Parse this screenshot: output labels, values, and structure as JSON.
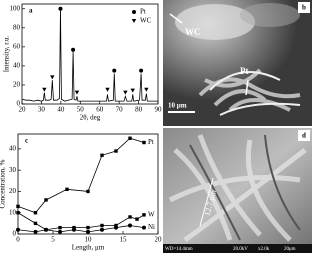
{
  "chart_data": [
    {
      "type": "line",
      "panel_label": "a",
      "x_label": "2θ, deg",
      "y_label": "Intensity, r.u.",
      "xlim": [
        20,
        90
      ],
      "xticks": [
        20,
        30,
        40,
        50,
        60,
        70,
        80,
        90
      ],
      "ylim": [
        0,
        105
      ],
      "yticks": [
        0,
        20,
        40,
        60,
        80,
        100
      ],
      "legend": "upper right",
      "series": [
        {
          "color": "#000000",
          "show_line": true,
          "marker": null,
          "x": [
            20,
            22,
            24,
            26,
            28,
            30,
            31,
            31.5,
            32,
            34,
            35,
            35.6,
            36.2,
            38,
            39.3,
            39.8,
            40.3,
            42,
            45.8,
            46.3,
            46.8,
            47.8,
            48.3,
            48.8,
            52,
            56,
            60,
            63.5,
            64,
            64.5,
            67,
            67.5,
            68,
            72.5,
            73.2,
            74,
            76.5,
            77,
            77.5,
            80.5,
            81.3,
            81.8,
            83.5,
            84,
            84.5,
            88,
            90
          ],
          "values": [
            5,
            4,
            4,
            3,
            4,
            3,
            4,
            12,
            4,
            4,
            5,
            25,
            4,
            4,
            6,
            100,
            5,
            3,
            5,
            55,
            5,
            4,
            8,
            3,
            3,
            3,
            3,
            3,
            10,
            3,
            4,
            32,
            3,
            3,
            8,
            3,
            3,
            10,
            3,
            4,
            32,
            4,
            4,
            11,
            3,
            3,
            3
          ]
        },
        {
          "name": "Pt",
          "color": "#000000",
          "show_line": false,
          "marker": "circle",
          "x": [
            39.8,
            46.3,
            67.5,
            81.3
          ],
          "values": [
            100,
            57,
            35,
            35
          ]
        },
        {
          "name": "WC",
          "color": "#000000",
          "show_line": false,
          "marker": "triangle-down",
          "x": [
            31.5,
            35.6,
            48.3,
            64,
            73.2,
            77,
            84
          ],
          "values": [
            15,
            28,
            12,
            15,
            12,
            14,
            15
          ]
        }
      ]
    },
    {
      "type": "line",
      "panel_label": "c",
      "x_label": "Length, μm",
      "y_label": "Concentration, %",
      "xlim": [
        0,
        20
      ],
      "xticks": [
        0,
        5,
        10,
        15,
        20
      ],
      "ylim": [
        0,
        47
      ],
      "yticks": [
        0,
        10,
        20,
        30,
        40
      ],
      "legend": "line end",
      "series": [
        {
          "name": "Pt",
          "color": "#000000",
          "show_line": true,
          "marker": "square",
          "x": [
            0,
            2.5,
            4,
            7,
            10,
            12,
            14,
            16,
            18
          ],
          "values": [
            13,
            10,
            16,
            21,
            20,
            37,
            39,
            45,
            43
          ]
        },
        {
          "name": "W",
          "color": "#000000",
          "show_line": true,
          "marker": "square",
          "x": [
            0,
            2.5,
            4,
            6,
            8,
            10,
            12,
            14,
            16,
            17,
            18
          ],
          "values": [
            10,
            5,
            2,
            3,
            3,
            3,
            4,
            4,
            8,
            7,
            9
          ]
        },
        {
          "name": "Ni",
          "color": "#000000",
          "show_line": true,
          "marker": "circle",
          "x": [
            0,
            2.5,
            4,
            6,
            8,
            10,
            12,
            14,
            16,
            18
          ],
          "values": [
            2,
            1,
            2,
            1,
            2,
            1,
            2,
            3,
            4,
            3
          ]
        }
      ]
    }
  ],
  "images": [
    {
      "label": "b",
      "annotations": [
        "WC",
        "Pt"
      ],
      "scale_bar": "10 μm"
    },
    {
      "label": "d",
      "measurement": "12.7 μm",
      "info_bar": [
        "WD=14.4mm",
        "20.0kV",
        "x2.0k",
        "20μm"
      ]
    }
  ]
}
